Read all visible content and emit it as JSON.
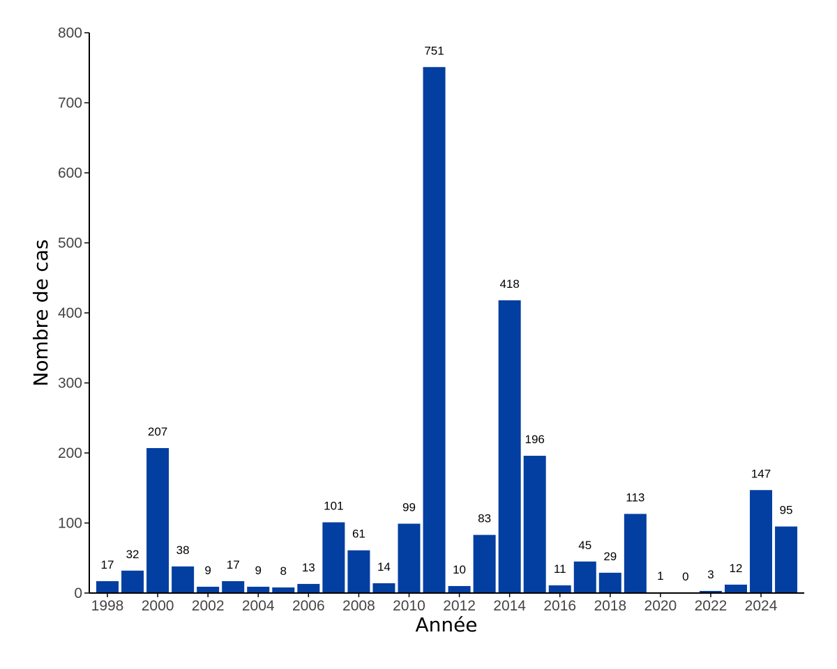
{
  "colors": {
    "bar": "#033ea1",
    "axis": "#000000",
    "tick_label": "#444444",
    "background": "#ffffff"
  },
  "chart_data": {
    "type": "bar",
    "title": "",
    "xlabel": "Année",
    "ylabel": "Nombre de cas",
    "ylim": [
      0,
      800
    ],
    "yticks": [
      0,
      100,
      200,
      300,
      400,
      500,
      600,
      700,
      800
    ],
    "xticks": [
      "1998",
      "2000",
      "2002",
      "2004",
      "2006",
      "2008",
      "2010",
      "2012",
      "2014",
      "2016",
      "2018",
      "2020",
      "2022",
      "2024"
    ],
    "grid": false,
    "legend": "none",
    "categories": [
      "1998",
      "1999",
      "2000",
      "2001",
      "2002",
      "2003",
      "2004",
      "2005",
      "2006",
      "2007",
      "2008",
      "2009",
      "2010",
      "2011",
      "2012",
      "2013",
      "2014",
      "2015",
      "2016",
      "2017",
      "2018",
      "2019",
      "2020",
      "2021",
      "2022",
      "2023",
      "2024",
      "2025"
    ],
    "values": [
      17,
      32,
      207,
      38,
      9,
      17,
      9,
      8,
      13,
      101,
      61,
      14,
      99,
      751,
      10,
      83,
      418,
      196,
      11,
      45,
      29,
      113,
      1,
      0,
      3,
      12,
      147,
      95
    ],
    "data_labels": [
      "17",
      "32",
      "207",
      "38",
      "9",
      "17",
      "9",
      "8",
      "13",
      "101",
      "61",
      "14",
      "99",
      "751",
      "10",
      "83",
      "418",
      "196",
      "11",
      "45",
      "29",
      "113",
      "1",
      "0",
      "3",
      "12",
      "147",
      "95"
    ]
  }
}
